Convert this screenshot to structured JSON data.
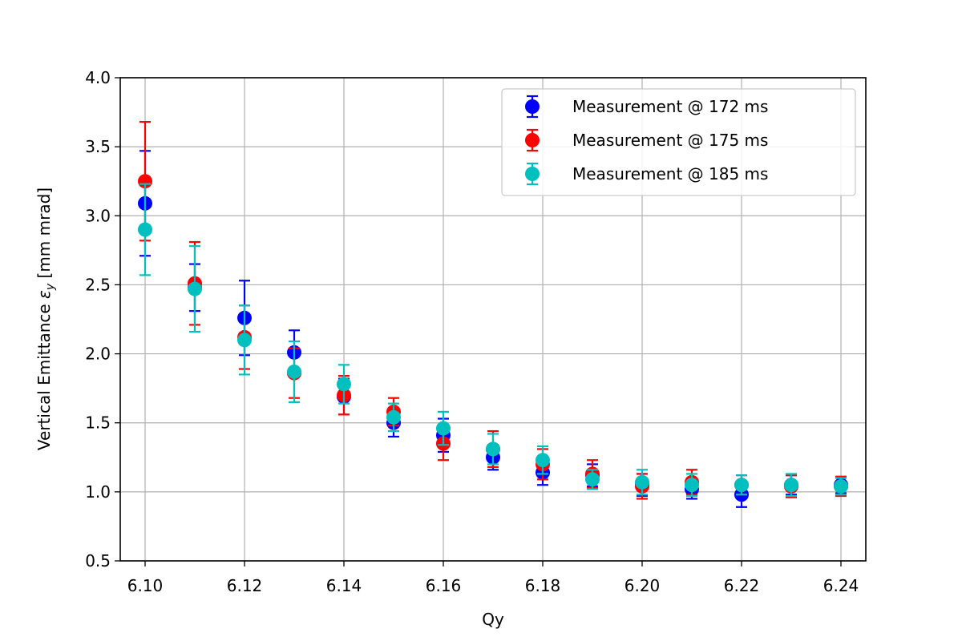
{
  "chart_data": {
    "type": "scatter",
    "title": "",
    "xlabel": "Qy",
    "ylabel_main": "Vertical Emittance ",
    "ylabel_symbol": "ε",
    "ylabel_sub": "y",
    "ylabel_units": " [mm mrad]",
    "xlim": [
      6.095,
      6.245
    ],
    "ylim": [
      0.5,
      4.0
    ],
    "x_ticks": [
      6.1,
      6.12,
      6.14,
      6.16,
      6.18,
      6.2,
      6.22,
      6.24
    ],
    "x_tick_labels": [
      "6.10",
      "6.12",
      "6.14",
      "6.16",
      "6.18",
      "6.20",
      "6.22",
      "6.24"
    ],
    "y_ticks": [
      0.5,
      1.0,
      1.5,
      2.0,
      2.5,
      3.0,
      3.5,
      4.0
    ],
    "y_tick_labels": [
      "0.5",
      "1.0",
      "1.5",
      "2.0",
      "2.5",
      "3.0",
      "3.5",
      "4.0"
    ],
    "grid": true,
    "legend_position": "top-right",
    "x": [
      6.1,
      6.11,
      6.12,
      6.13,
      6.14,
      6.15,
      6.16,
      6.17,
      6.18,
      6.19,
      6.2,
      6.21,
      6.22,
      6.23,
      6.24
    ],
    "series": [
      {
        "name": "Measurement @ 172 ms",
        "color": "#0000ff",
        "values": [
          3.09,
          2.48,
          2.26,
          2.01,
          1.69,
          1.5,
          1.41,
          1.25,
          1.14,
          1.12,
          1.05,
          1.02,
          0.98,
          1.05,
          1.05
        ],
        "errors": [
          0.38,
          0.17,
          0.27,
          0.16,
          0.13,
          0.1,
          0.12,
          0.09,
          0.09,
          0.08,
          0.08,
          0.07,
          0.09,
          0.07,
          0.06
        ]
      },
      {
        "name": "Measurement @ 175 ms",
        "color": "#ff0000",
        "values": [
          3.25,
          2.51,
          2.12,
          1.86,
          1.7,
          1.58,
          1.35,
          1.31,
          1.2,
          1.13,
          1.04,
          1.07,
          1.05,
          1.04,
          1.04
        ],
        "errors": [
          0.43,
          0.3,
          0.23,
          0.18,
          0.14,
          0.1,
          0.12,
          0.13,
          0.11,
          0.1,
          0.09,
          0.09,
          0.07,
          0.08,
          0.07
        ]
      },
      {
        "name": "Measurement @ 185 ms",
        "color": "#00bfbf",
        "values": [
          2.9,
          2.47,
          2.1,
          1.87,
          1.78,
          1.54,
          1.46,
          1.31,
          1.23,
          1.09,
          1.07,
          1.05,
          1.05,
          1.05,
          1.04
        ],
        "errors": [
          0.33,
          0.31,
          0.25,
          0.22,
          0.14,
          0.1,
          0.12,
          0.11,
          0.1,
          0.07,
          0.09,
          0.08,
          0.07,
          0.08,
          0.06
        ]
      }
    ]
  }
}
